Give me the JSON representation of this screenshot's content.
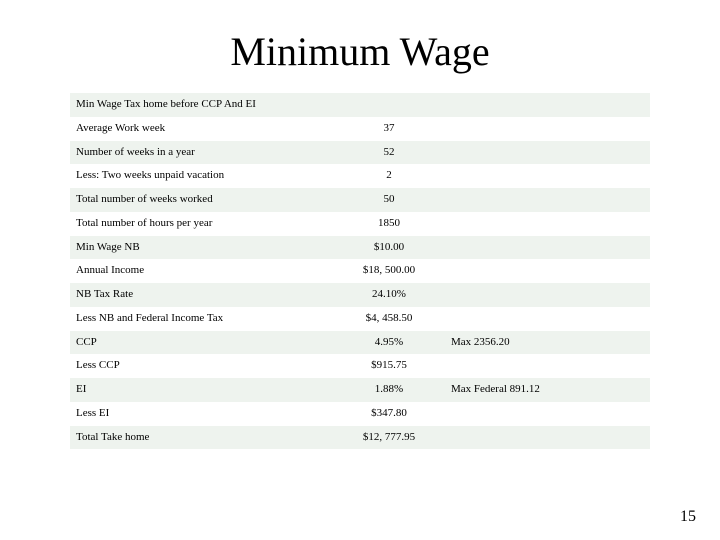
{
  "title": "Minimum Wage",
  "page_number": "15",
  "colors": {
    "row_stripe": "#eef3ee",
    "row_alt": "#ffffff",
    "background": "#ffffff",
    "text": "#000000"
  },
  "typography": {
    "title_fontsize_pt": 30,
    "body_fontsize_pt": 8.5,
    "font_family": "Times New Roman"
  },
  "table": {
    "type": "table",
    "columns": [
      "label",
      "value",
      "note",
      "blank"
    ],
    "column_widths_pct": [
      45,
      20,
      20,
      15
    ],
    "rows": [
      {
        "label": "Min Wage Tax home before CCP And EI",
        "value": "",
        "note": ""
      },
      {
        "label": "Average Work week",
        "value": "37",
        "note": ""
      },
      {
        "label": "Number of weeks in a year",
        "value": "52",
        "note": ""
      },
      {
        "label": "Less: Two weeks unpaid vacation",
        "value": "2",
        "note": ""
      },
      {
        "label": "Total number of weeks worked",
        "value": "50",
        "note": ""
      },
      {
        "label": "Total number of hours per year",
        "value": "1850",
        "note": ""
      },
      {
        "label": "Min Wage NB",
        "value": "$10.00",
        "note": ""
      },
      {
        "label": "Annual Income",
        "value": "$18, 500.00",
        "note": ""
      },
      {
        "label": "NB Tax Rate",
        "value": "24.10%",
        "note": ""
      },
      {
        "label": "Less NB and Federal Income Tax",
        "value": "$4, 458.50",
        "note": ""
      },
      {
        "label": "CCP",
        "value": "4.95%",
        "note": "Max 2356.20"
      },
      {
        "label": "Less CCP",
        "value": "$915.75",
        "note": ""
      },
      {
        "label": "EI",
        "value": "1.88%",
        "note": "Max Federal 891.12"
      },
      {
        "label": "Less EI",
        "value": "$347.80",
        "note": ""
      },
      {
        "label": "Total Take home",
        "value": "$12, 777.95",
        "note": ""
      }
    ]
  }
}
